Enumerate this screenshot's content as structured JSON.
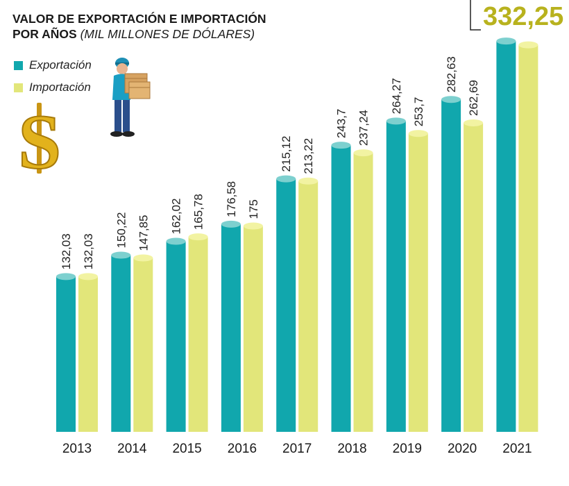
{
  "title": "VALOR DE EXPORTACIÓN E IMPORTACIÓN",
  "title_line2": "POR AÑOS",
  "subtitle": "(MIL MILLONES DE DÓLARES)",
  "colors": {
    "export": "#11a7ad",
    "export_top": "#7dd0cf",
    "import": "#e2e67a",
    "import_top": "#f2f3a2",
    "highlight": "#b8b21e"
  },
  "icons": [
    "worker-with-boxes-icon",
    "dollar-sign-icon"
  ],
  "chart_data": {
    "type": "bar",
    "categories": [
      "2013",
      "2014",
      "2015",
      "2016",
      "2017",
      "2018",
      "2019",
      "2020",
      "2021"
    ],
    "series": [
      {
        "name": "Exportación",
        "values": [
          132.03,
          150.22,
          162.02,
          176.58,
          215.12,
          243.7,
          264.27,
          282.63,
          332.25
        ],
        "labels": [
          "132,03",
          "150,22",
          "162,02",
          "176,58",
          "215,12",
          "243,7",
          "264,27",
          "282,63",
          ""
        ]
      },
      {
        "name": "Importación",
        "values": [
          132.03,
          147.85,
          165.78,
          175,
          213.22,
          237.24,
          253.7,
          262.69,
          329
        ],
        "labels": [
          "132,03",
          "147,85",
          "165,78",
          "175",
          "213,22",
          "237,24",
          "253,7",
          "262,69",
          ""
        ]
      }
    ],
    "highlight_label": "332,25",
    "legend_position": "top-left",
    "grid": false
  }
}
